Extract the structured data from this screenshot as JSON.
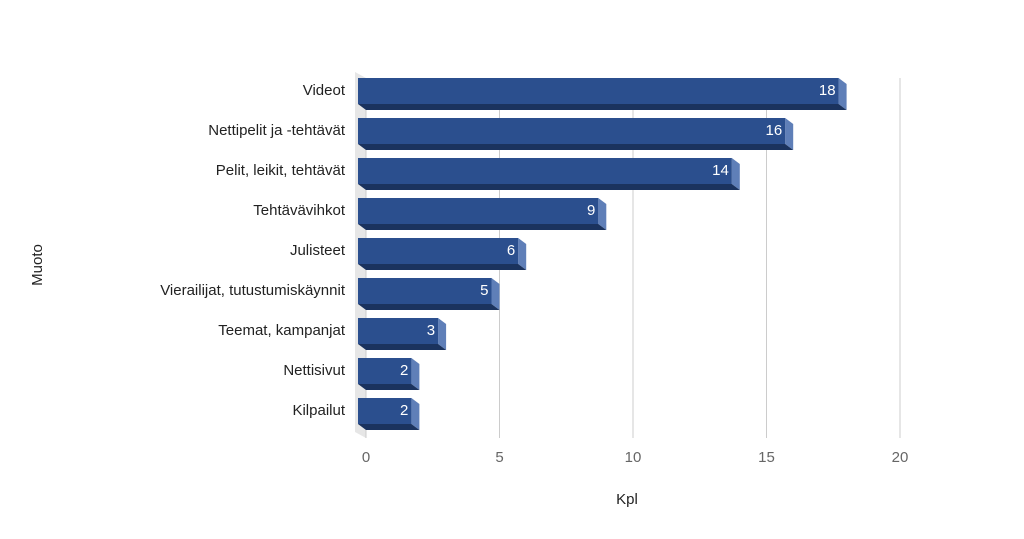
{
  "chart_data": {
    "type": "bar",
    "orientation": "horizontal",
    "x_label": "Kpl",
    "y_label": "Muoto",
    "categories": [
      "Videot",
      "Nettipelit ja -tehtävät",
      "Pelit, leikit, tehtävät",
      "Tehtävävihkot",
      "Julisteet",
      "Vierailijat, tutustumiskäynnit",
      "Teemat, kampanjat",
      "Nettisivut",
      "Kilpailut"
    ],
    "values": [
      18,
      16,
      14,
      9,
      6,
      5,
      3,
      2,
      2
    ],
    "color": "#2b4f8e",
    "xlim": [
      0,
      20
    ],
    "xticks": [
      0,
      5,
      10,
      15,
      20
    ],
    "grid": true
  }
}
